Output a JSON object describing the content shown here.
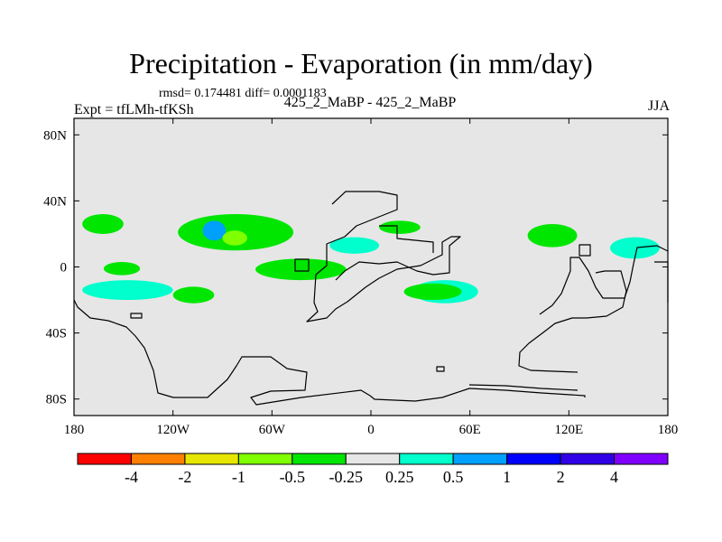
{
  "chart_data": {
    "type": "contour-map",
    "title": "Precipitation - Evaporation (in mm/day)",
    "stats_text": "rmsd= 0.174481 diff= 0.0001183",
    "left_label": "Expt = tfLMh-tfKSh",
    "center_label": "425_2_MaBP - 425_2_MaBP",
    "right_label": "JJA",
    "x_ticks": [
      {
        "lon": -180,
        "label": "180"
      },
      {
        "lon": -120,
        "label": "120W"
      },
      {
        "lon": -60,
        "label": "60W"
      },
      {
        "lon": 0,
        "label": "0"
      },
      {
        "lon": 60,
        "label": "60E"
      },
      {
        "lon": 120,
        "label": "120E"
      },
      {
        "lon": 180,
        "label": "180"
      }
    ],
    "y_ticks": [
      {
        "lat": 80,
        "label": "80N"
      },
      {
        "lat": 40,
        "label": "40N"
      },
      {
        "lat": 0,
        "label": "0"
      },
      {
        "lat": -40,
        "label": "40S"
      },
      {
        "lat": -80,
        "label": "80S"
      }
    ],
    "xlim": [
      -180,
      180
    ],
    "ylim": [
      -90,
      90
    ],
    "colorbar": {
      "colors": [
        "#ff0000",
        "#ff8000",
        "#e6e600",
        "#80ff00",
        "#00e600",
        "#e6e6e6",
        "#00ffcc",
        "#00a0ff",
        "#0000ff",
        "#3000e6",
        "#8000ff"
      ],
      "labels": [
        "-4",
        "-2",
        "-1",
        "-0.5",
        "-0.25",
        "0.25",
        "0.5",
        "1",
        "2",
        "4"
      ]
    },
    "background_color": "#e6e6e6",
    "anomaly_regions": [
      {
        "name": "n-pacific-west-green",
        "color": "#00e600",
        "lon": [
          -175,
          -150
        ],
        "lat": [
          20,
          32
        ]
      },
      {
        "name": "n-pacific-east-green",
        "color": "#00e600",
        "lon": [
          -117,
          -47
        ],
        "lat": [
          10,
          32
        ]
      },
      {
        "name": "n-pacific-blue-core",
        "color": "#00a0ff",
        "lon": [
          -102,
          -88
        ],
        "lat": [
          16,
          28
        ]
      },
      {
        "name": "n-pacific-yellow-core",
        "color": "#80ff00",
        "lon": [
          -90,
          -75
        ],
        "lat": [
          13,
          22
        ]
      },
      {
        "name": "e-pacific-green",
        "color": "#00e600",
        "lon": [
          -162,
          -140
        ],
        "lat": [
          -5,
          3
        ]
      },
      {
        "name": "s-pacific-cyan",
        "color": "#00ffcc",
        "lon": [
          -175,
          -120
        ],
        "lat": [
          -20,
          -8
        ]
      },
      {
        "name": "s-pacific-blue-dot",
        "color": "#00a0ff",
        "lon": [
          -112,
          -108
        ],
        "lat": [
          -18,
          -12
        ]
      },
      {
        "name": "s-pacific-green",
        "color": "#00e600",
        "lon": [
          -120,
          -95
        ],
        "lat": [
          -22,
          -12
        ]
      },
      {
        "name": "atlantic-green",
        "color": "#00e600",
        "lon": [
          -70,
          -15
        ],
        "lat": [
          -8,
          5
        ]
      },
      {
        "name": "africa-cyan",
        "color": "#00ffcc",
        "lon": [
          -25,
          5
        ],
        "lat": [
          8,
          18
        ]
      },
      {
        "name": "africa-green",
        "color": "#00e600",
        "lon": [
          5,
          30
        ],
        "lat": [
          20,
          28
        ]
      },
      {
        "name": "indian-cyan",
        "color": "#00ffcc",
        "lon": [
          25,
          65
        ],
        "lat": [
          -22,
          -8
        ]
      },
      {
        "name": "indian-green",
        "color": "#00e600",
        "lon": [
          20,
          55
        ],
        "lat": [
          -20,
          -10
        ]
      },
      {
        "name": "asia-green",
        "color": "#00e600",
        "lon": [
          95,
          125
        ],
        "lat": [
          12,
          26
        ]
      },
      {
        "name": "china-cyan",
        "color": "#00ffcc",
        "lon": [
          145,
          175
        ],
        "lat": [
          5,
          18
        ]
      }
    ]
  }
}
